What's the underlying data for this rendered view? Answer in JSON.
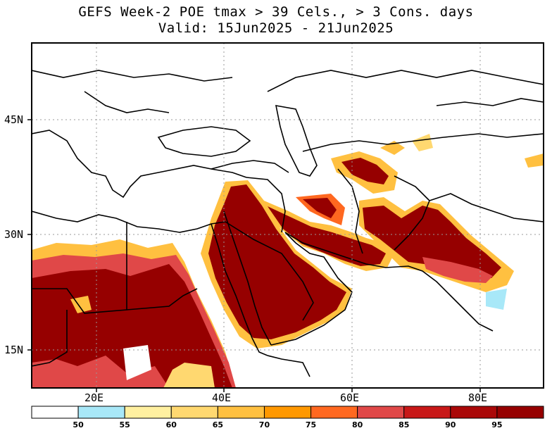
{
  "title": {
    "line1": "GEFS Week-2 POE tmax > 39 Cels., > 3 Cons. days",
    "line2": "Valid: 15Jun2025 - 21Jun2025"
  },
  "axes": {
    "lat_labels": [
      "45N",
      "30N",
      "15N"
    ],
    "lon_labels": [
      "20E",
      "40E",
      "60E",
      "80E"
    ]
  },
  "colorbar": {
    "thresholds": [
      "50",
      "55",
      "60",
      "65",
      "70",
      "75",
      "80",
      "85",
      "90",
      "95"
    ],
    "colors": [
      "#ffffff",
      "#a8e8f8",
      "#fff0a0",
      "#ffd870",
      "#ffc040",
      "#ff9800",
      "#ff6820",
      "#e04848",
      "#c81818",
      "#aa0808",
      "#960000"
    ]
  }
}
